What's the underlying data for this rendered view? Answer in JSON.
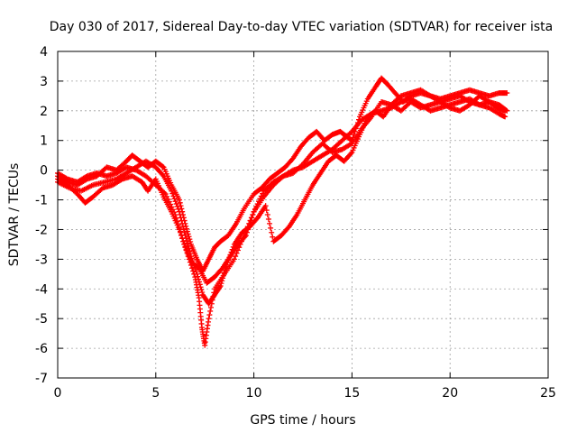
{
  "chart_data": {
    "type": "scatter",
    "title": "Day 030 of 2017, Sidereal Day-to-day VTEC variation (SDTVAR) for receiver ista",
    "xlabel": "GPS time / hours",
    "ylabel": "SDTVAR / TECUs",
    "xlim": [
      0,
      25
    ],
    "ylim": [
      -7,
      4
    ],
    "xticks": [
      0,
      5,
      10,
      15,
      20,
      25
    ],
    "yticks": [
      -7,
      -6,
      -5,
      -4,
      -3,
      -2,
      -1,
      0,
      1,
      2,
      3,
      4
    ],
    "grid": true,
    "marker": "+",
    "color": "#ff0000",
    "series": [
      {
        "points": [
          [
            0,
            -0.3
          ],
          [
            0.5,
            -0.5
          ],
          [
            1,
            -0.8
          ],
          [
            1.4,
            -1.1
          ],
          [
            1.8,
            -0.9
          ],
          [
            2.3,
            -0.6
          ],
          [
            2.8,
            -0.5
          ],
          [
            3.3,
            -0.3
          ],
          [
            3.8,
            -0.2
          ],
          [
            4.3,
            -0.4
          ],
          [
            4.6,
            -0.7
          ],
          [
            5,
            -0.3
          ],
          [
            5.4,
            -0.9
          ],
          [
            5.8,
            -1.4
          ],
          [
            6.2,
            -2.0
          ],
          [
            6.6,
            -2.8
          ],
          [
            7.0,
            -3.6
          ],
          [
            7.2,
            -4.3
          ],
          [
            7.35,
            -5.3
          ],
          [
            7.5,
            -5.9
          ],
          [
            7.7,
            -5.0
          ],
          [
            8.0,
            -4.0
          ],
          [
            8.5,
            -3.5
          ],
          [
            9.0,
            -3.0
          ],
          [
            9.5,
            -2.2
          ],
          [
            10,
            -1.4
          ],
          [
            10.5,
            -0.9
          ],
          [
            11,
            -0.5
          ],
          [
            11.5,
            -0.2
          ],
          [
            12,
            0.0
          ],
          [
            12.5,
            0.1
          ],
          [
            13,
            0.3
          ],
          [
            13.5,
            0.5
          ],
          [
            14,
            0.7
          ],
          [
            14.5,
            1.0
          ],
          [
            15,
            1.3
          ],
          [
            15.5,
            1.7
          ],
          [
            16,
            1.9
          ],
          [
            16.5,
            2.0
          ],
          [
            17,
            2.1
          ],
          [
            17.5,
            2.3
          ],
          [
            18,
            2.4
          ],
          [
            18.5,
            2.2
          ],
          [
            19,
            2.0
          ],
          [
            19.5,
            2.1
          ],
          [
            20,
            2.2
          ],
          [
            20.5,
            2.3
          ],
          [
            21,
            2.4
          ],
          [
            21.5,
            2.2
          ],
          [
            22,
            2.1
          ],
          [
            22.5,
            1.9
          ],
          [
            22.8,
            1.8
          ]
        ]
      },
      {
        "points": [
          [
            0,
            -0.2
          ],
          [
            0.5,
            -0.4
          ],
          [
            1,
            -0.5
          ],
          [
            1.5,
            -0.3
          ],
          [
            2,
            -0.2
          ],
          [
            2.5,
            0.1
          ],
          [
            3,
            0.0
          ],
          [
            3.5,
            0.3
          ],
          [
            3.8,
            0.5
          ],
          [
            4.2,
            0.3
          ],
          [
            4.6,
            0.1
          ],
          [
            5,
            0.3
          ],
          [
            5.4,
            0.1
          ],
          [
            5.8,
            -0.5
          ],
          [
            6.2,
            -1.0
          ],
          [
            6.5,
            -1.8
          ],
          [
            6.8,
            -2.5
          ],
          [
            7.1,
            -3.0
          ],
          [
            7.4,
            -3.4
          ],
          [
            7.7,
            -3.0
          ],
          [
            8.0,
            -2.6
          ],
          [
            8.3,
            -2.4
          ],
          [
            8.7,
            -2.2
          ],
          [
            9.1,
            -1.8
          ],
          [
            9.5,
            -1.3
          ],
          [
            10,
            -0.8
          ],
          [
            10.4,
            -0.6
          ],
          [
            10.8,
            -0.3
          ],
          [
            11.2,
            -0.1
          ],
          [
            11.6,
            0.1
          ],
          [
            12,
            0.4
          ],
          [
            12.4,
            0.8
          ],
          [
            12.8,
            1.1
          ],
          [
            13.2,
            1.3
          ],
          [
            13.6,
            1.0
          ],
          [
            14,
            1.2
          ],
          [
            14.4,
            1.3
          ],
          [
            14.8,
            1.1
          ],
          [
            15,
            1.0
          ],
          [
            15.4,
            1.8
          ],
          [
            15.8,
            2.4
          ],
          [
            16.2,
            2.8
          ],
          [
            16.5,
            3.1
          ],
          [
            16.8,
            2.9
          ],
          [
            17.2,
            2.6
          ],
          [
            17.6,
            2.3
          ],
          [
            18,
            2.5
          ],
          [
            18.5,
            2.6
          ],
          [
            19,
            2.5
          ],
          [
            19.5,
            2.4
          ],
          [
            20,
            2.5
          ],
          [
            20.5,
            2.6
          ],
          [
            21,
            2.7
          ],
          [
            21.5,
            2.6
          ],
          [
            22,
            2.5
          ],
          [
            22.5,
            2.6
          ],
          [
            22.9,
            2.6
          ]
        ]
      },
      {
        "points": [
          [
            0,
            -0.4
          ],
          [
            0.6,
            -0.6
          ],
          [
            1.2,
            -0.7
          ],
          [
            1.8,
            -0.5
          ],
          [
            2.4,
            -0.4
          ],
          [
            3,
            -0.3
          ],
          [
            3.5,
            -0.1
          ],
          [
            4,
            0.1
          ],
          [
            4.5,
            0.3
          ],
          [
            5,
            0.1
          ],
          [
            5.4,
            -0.2
          ],
          [
            5.8,
            -0.7
          ],
          [
            6.2,
            -1.4
          ],
          [
            6.5,
            -2.2
          ],
          [
            6.8,
            -2.9
          ],
          [
            7.1,
            -3.5
          ],
          [
            7.4,
            -4.2
          ],
          [
            7.7,
            -4.5
          ],
          [
            8,
            -4.2
          ],
          [
            8.3,
            -3.9
          ],
          [
            8.6,
            -3.2
          ],
          [
            9,
            -2.5
          ],
          [
            9.4,
            -2.1
          ],
          [
            9.8,
            -1.9
          ],
          [
            10.2,
            -1.6
          ],
          [
            10.6,
            -1.2
          ],
          [
            11,
            -2.4
          ],
          [
            11.4,
            -2.2
          ],
          [
            11.8,
            -1.9
          ],
          [
            12.2,
            -1.5
          ],
          [
            12.6,
            -1.0
          ],
          [
            13,
            -0.5
          ],
          [
            13.4,
            -0.1
          ],
          [
            13.8,
            0.3
          ],
          [
            14.2,
            0.5
          ],
          [
            14.6,
            0.3
          ],
          [
            15,
            0.6
          ],
          [
            15.4,
            1.2
          ],
          [
            15.8,
            1.8
          ],
          [
            16.2,
            2.0
          ],
          [
            16.6,
            1.8
          ],
          [
            17,
            2.2
          ],
          [
            17.5,
            2.5
          ],
          [
            18,
            2.6
          ],
          [
            18.5,
            2.7
          ],
          [
            19,
            2.5
          ],
          [
            19.5,
            2.3
          ],
          [
            20,
            2.4
          ],
          [
            20.5,
            2.5
          ],
          [
            21,
            2.3
          ],
          [
            21.5,
            2.2
          ],
          [
            22,
            2.3
          ],
          [
            22.4,
            2.1
          ],
          [
            22.8,
            2.0
          ]
        ]
      },
      {
        "points": [
          [
            0,
            -0.1
          ],
          [
            0.5,
            -0.3
          ],
          [
            1,
            -0.4
          ],
          [
            1.5,
            -0.2
          ],
          [
            2,
            -0.1
          ],
          [
            2.5,
            -0.2
          ],
          [
            3,
            -0.1
          ],
          [
            3.5,
            0.1
          ],
          [
            4,
            0.0
          ],
          [
            4.5,
            -0.2
          ],
          [
            5,
            -0.5
          ],
          [
            5.5,
            -0.8
          ],
          [
            6,
            -1.5
          ],
          [
            6.4,
            -2.4
          ],
          [
            6.8,
            -3.1
          ],
          [
            7.2,
            -3.3
          ],
          [
            7.6,
            -3.8
          ],
          [
            8,
            -3.6
          ],
          [
            8.4,
            -3.3
          ],
          [
            8.8,
            -2.9
          ],
          [
            9.2,
            -2.5
          ],
          [
            9.6,
            -2.2
          ],
          [
            10,
            -1.4
          ],
          [
            10.5,
            -0.7
          ],
          [
            11,
            -0.4
          ],
          [
            11.5,
            -0.2
          ],
          [
            12,
            -0.1
          ],
          [
            12.5,
            0.2
          ],
          [
            13,
            0.6
          ],
          [
            13.5,
            0.9
          ],
          [
            14,
            0.6
          ],
          [
            14.5,
            0.7
          ],
          [
            15,
            0.9
          ],
          [
            15.5,
            1.4
          ],
          [
            16,
            1.8
          ],
          [
            16.5,
            2.3
          ],
          [
            17,
            2.2
          ],
          [
            17.5,
            2.0
          ],
          [
            18,
            2.3
          ],
          [
            18.5,
            2.1
          ],
          [
            19,
            2.2
          ],
          [
            19.5,
            2.3
          ],
          [
            20,
            2.1
          ],
          [
            20.5,
            2.0
          ],
          [
            21,
            2.2
          ],
          [
            21.5,
            2.5
          ],
          [
            22,
            2.3
          ],
          [
            22.5,
            2.2
          ],
          [
            22.9,
            2.0
          ]
        ]
      }
    ]
  }
}
